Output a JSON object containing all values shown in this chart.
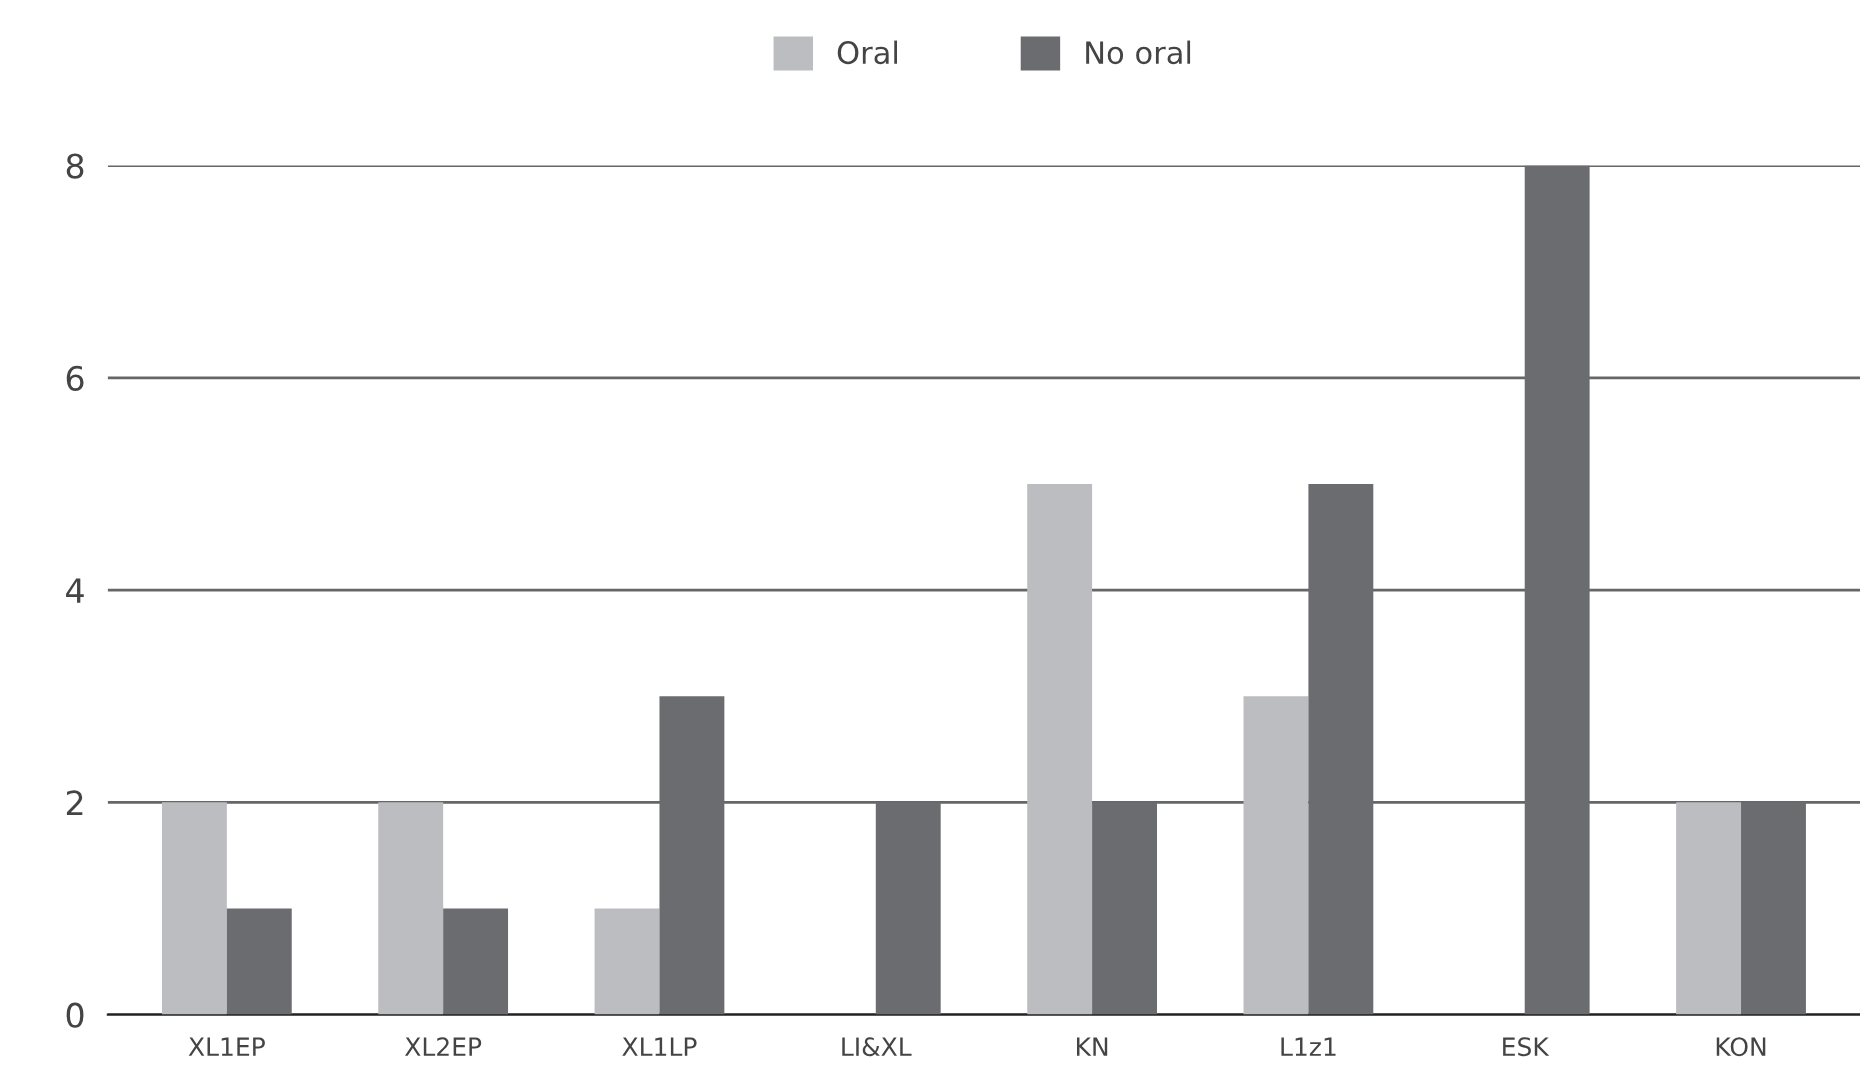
{
  "chart_data": {
    "type": "bar",
    "categories": [
      "XL1EP",
      "XL2EP",
      "XL1LP",
      "LI&XL",
      "KN",
      "L1z1",
      "ESK",
      "KON"
    ],
    "series": [
      {
        "name": "Oral",
        "color": "#bcbdc1",
        "values": [
          2,
          2,
          1,
          0,
          5,
          3,
          0,
          2
        ]
      },
      {
        "name": "No oral",
        "color": "#6b6c70",
        "values": [
          1,
          1,
          3,
          2,
          2,
          5,
          8,
          2
        ]
      }
    ],
    "ylim": [
      0,
      8
    ],
    "yticks": [
      0,
      2,
      4,
      6,
      8
    ],
    "grid": "y",
    "legend": "top"
  }
}
